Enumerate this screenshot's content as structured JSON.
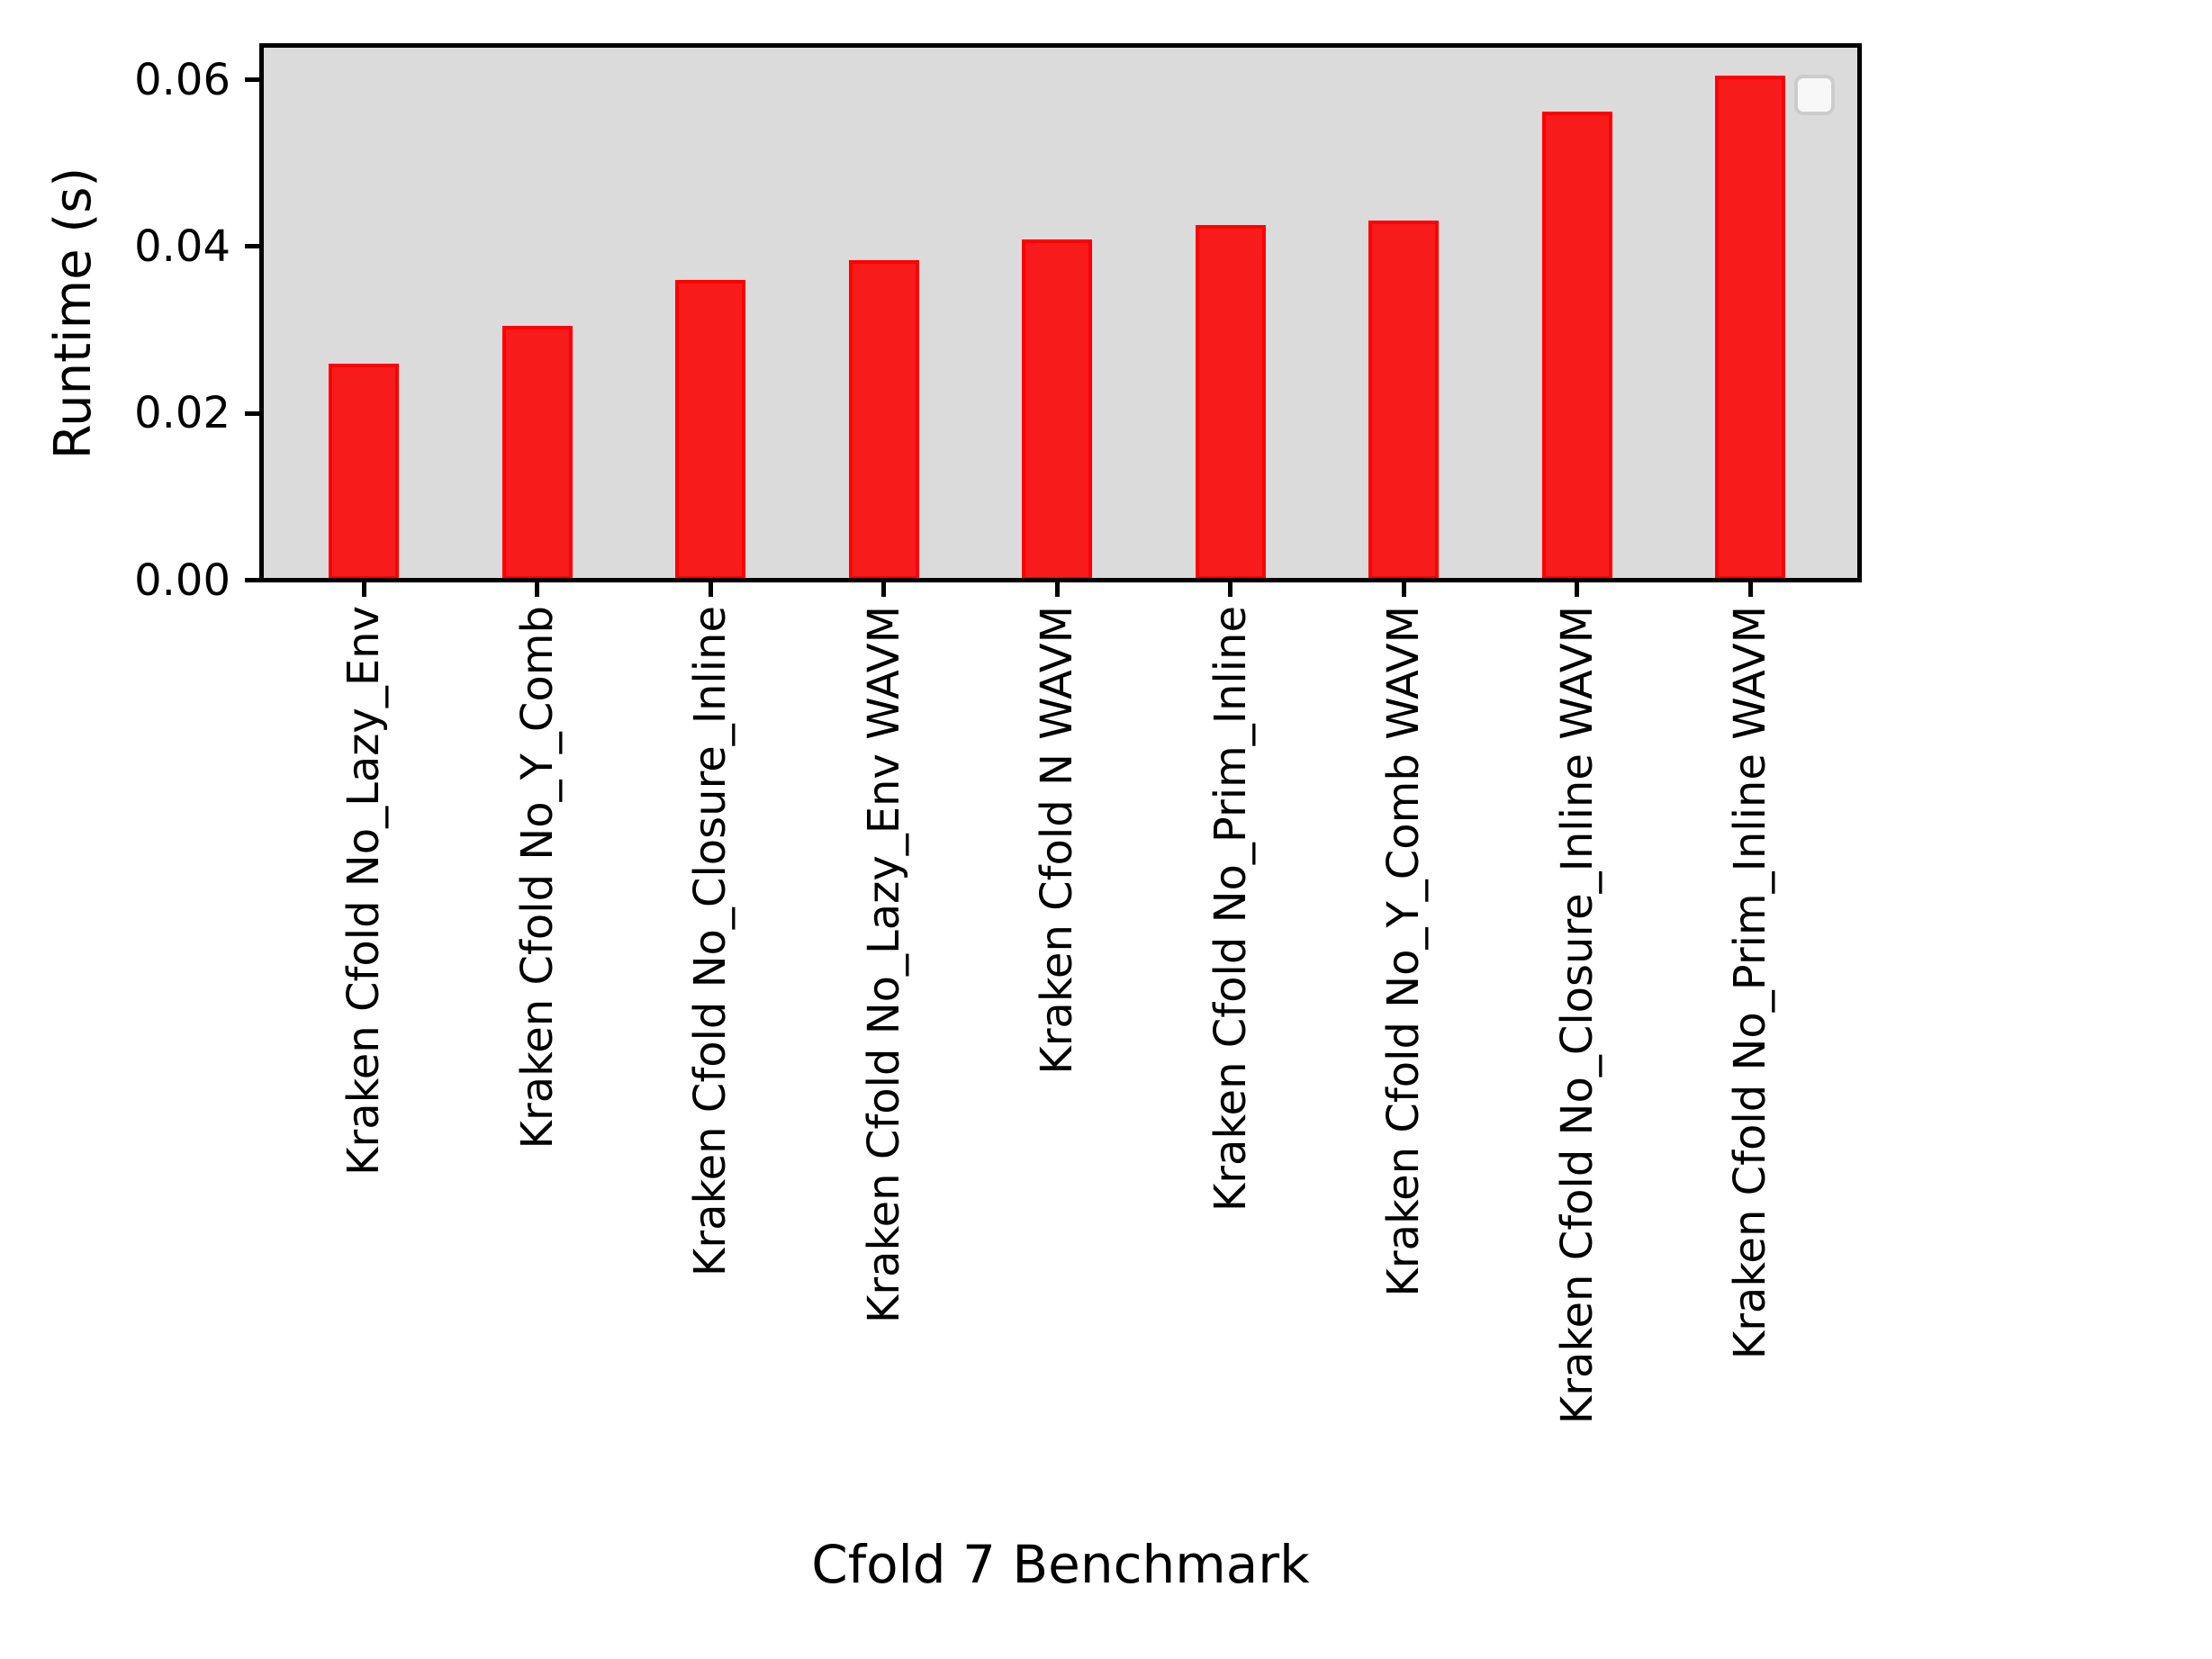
{
  "chart_data": {
    "type": "bar",
    "title": "",
    "xlabel": "Cfold 7 Benchmark",
    "ylabel": "Runtime (s)",
    "categories": [
      "Kraken Cfold No_Lazy_Env",
      "Kraken Cfold No_Y_Comb",
      "Kraken Cfold No_Closure_Inline",
      "Kraken Cfold No_Lazy_Env WAVM",
      "Kraken Cfold N WAVM",
      "Kraken Cfold No_Prim_Inline",
      "Kraken Cfold No_Y_Comb WAVM",
      "Kraken Cfold No_Closure_Inline WAVM",
      "Kraken Cfold No_Prim_Inline WAVM"
    ],
    "values": [
      0.026,
      0.0305,
      0.036,
      0.0384,
      0.0409,
      0.0426,
      0.0431,
      0.0562,
      0.0605
    ],
    "series_name": "Runtime",
    "ylim": [
      0,
      0.0641
    ],
    "yticks": [
      0,
      0.02,
      0.04,
      0.06
    ],
    "ytick_labels": [
      "0.00",
      "0.02",
      "0.04",
      "0.06"
    ],
    "grid": false,
    "legend_position": "upper right",
    "legend_entries": [],
    "colors": {
      "bar_fill": "#f71b1b",
      "bar_edge": "#ff0000",
      "plot_background": "#dbdbdb",
      "figure_background": "#ffffff",
      "axis": "#000000",
      "legend_fill": "#f8f8f8",
      "legend_border": "#cccccc"
    }
  }
}
